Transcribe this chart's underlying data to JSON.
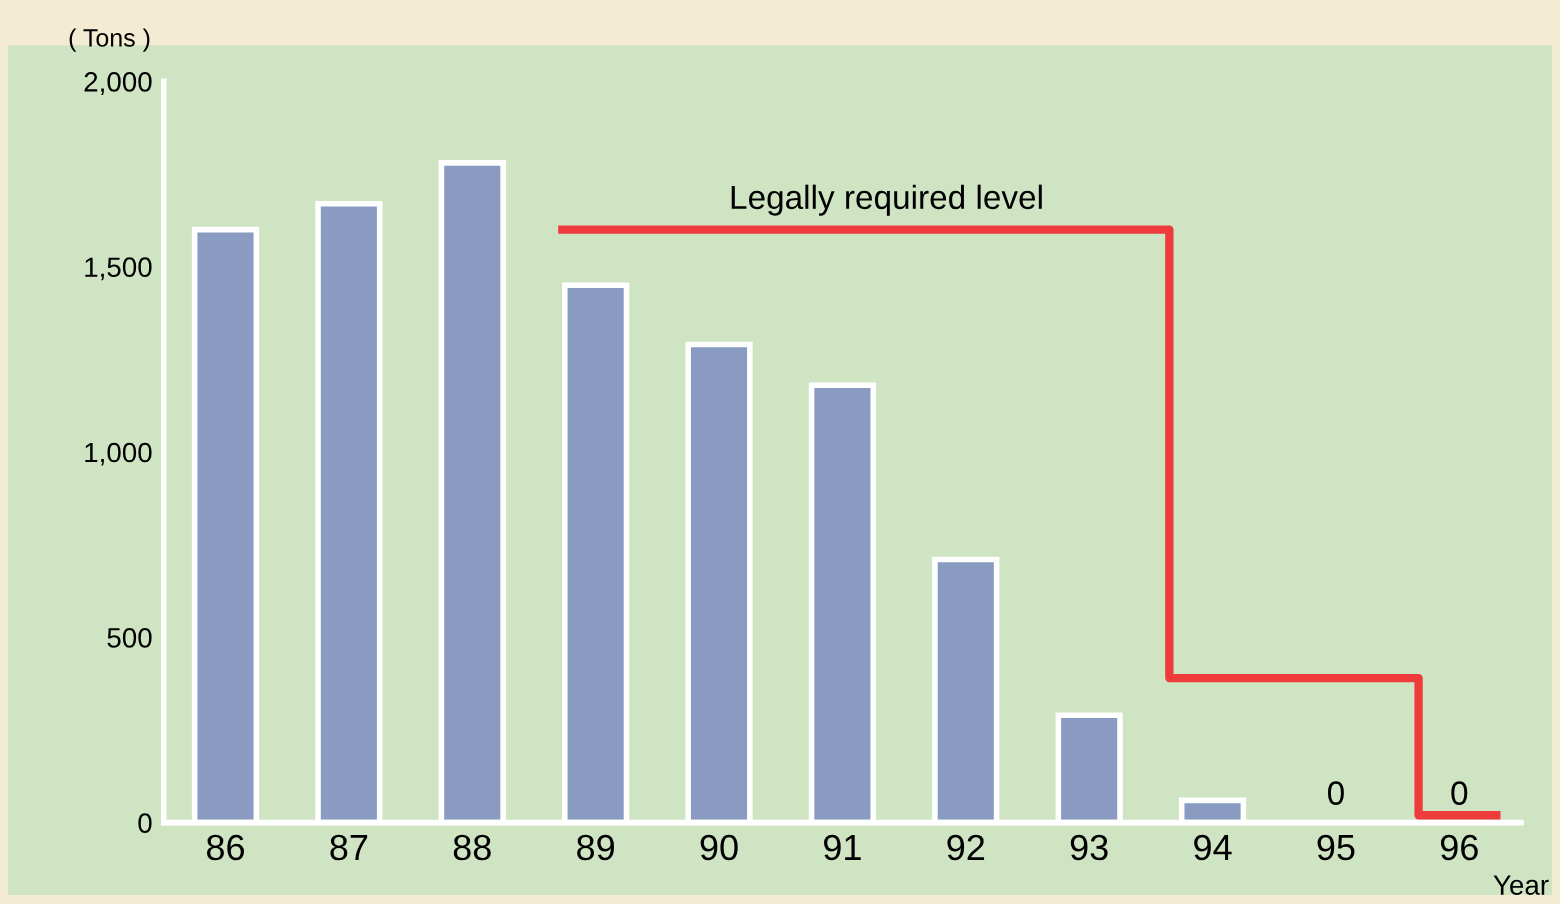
{
  "chart_data": {
    "type": "bar",
    "x": [
      86,
      87,
      88,
      89,
      90,
      91,
      92,
      93,
      94,
      95,
      96
    ],
    "xlabel": "Year",
    "ylabel": "( Tons )",
    "series": [
      {
        "color": "#8a9bc2",
        "values": [
          1600,
          1670,
          1780,
          1450,
          1290,
          1180,
          710,
          290,
          60,
          0,
          0
        ],
        "value_labels": [
          null,
          null,
          null,
          null,
          null,
          null,
          null,
          null,
          null,
          "0",
          "0"
        ]
      },
      {
        "type": "step",
        "name": "Legally required level",
        "color": "#ee3b3b",
        "x": [
          88.73,
          93.65,
          95.67,
          96.3
        ],
        "values": [
          1600,
          390,
          20,
          20
        ]
      }
    ],
    "xlim": [
      85.5,
      96.5
    ],
    "xticks": [
      86,
      87,
      88,
      89,
      90,
      91,
      92,
      93,
      94,
      95,
      96
    ],
    "ylim": [
      0,
      2000
    ],
    "yticks": [
      0,
      500,
      {
        "value": 1000,
        "label": "1,000"
      },
      {
        "value": 1500,
        "label": "1,500"
      },
      {
        "value": 2000,
        "label": "2,000"
      }
    ],
    "grid": false,
    "legend": false
  }
}
